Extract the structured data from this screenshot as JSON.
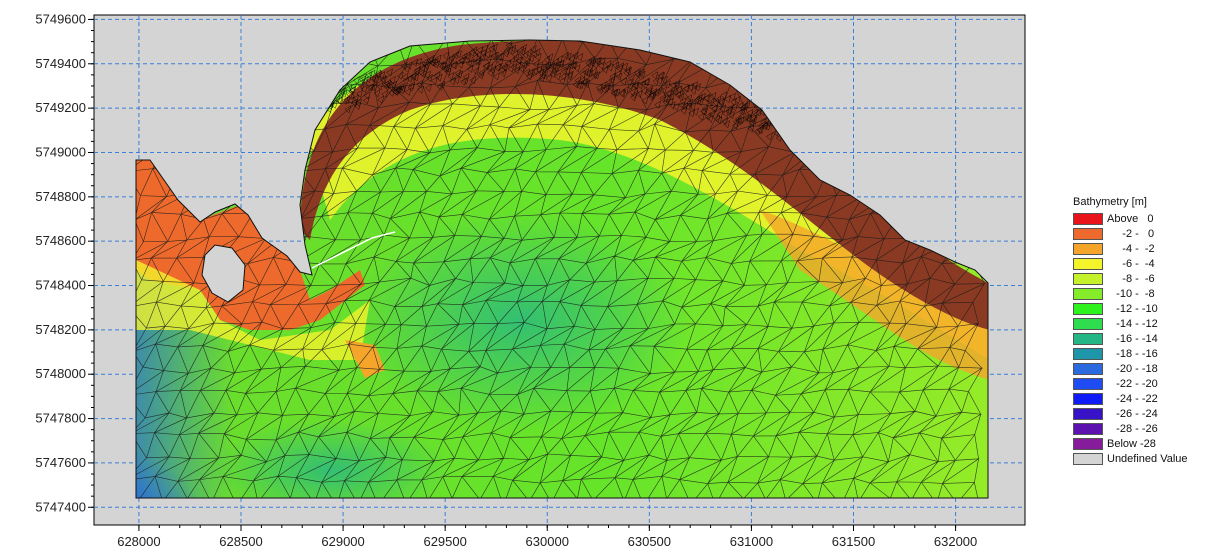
{
  "map": {
    "x_ticks": [
      "628000",
      "628500",
      "629000",
      "629500",
      "630000",
      "630500",
      "631000",
      "631500",
      "632000"
    ],
    "y_ticks": [
      "5749600",
      "5749400",
      "5749200",
      "5749000",
      "5748800",
      "5748600",
      "5748400",
      "5748200",
      "5748000",
      "5747800",
      "5747600",
      "5747400"
    ],
    "x_range": [
      627780,
      632340
    ],
    "y_range": [
      5747320,
      5749620
    ],
    "background_color": "#d4d4d4",
    "grid": "dashed blue",
    "grid_color": "#3a7fd8",
    "mesh": "triangular, black lines"
  },
  "legend": {
    "title": "Bathymetry [m]",
    "items": [
      {
        "label": "Above   0",
        "color": "#e8141a"
      },
      {
        "label": "     -2 -   0",
        "color": "#ee6a2c"
      },
      {
        "label": "     -4 -  -2",
        "color": "#f5a52a"
      },
      {
        "label": "     -6 -  -4",
        "color": "#f4f42c"
      },
      {
        "label": "     -8 -  -6",
        "color": "#c4f02c"
      },
      {
        "label": "   -10 -  -8",
        "color": "#84ec28"
      },
      {
        "label": "   -12 - -10",
        "color": "#2ef21e"
      },
      {
        "label": "   -14 - -12",
        "color": "#2ede4e"
      },
      {
        "label": "   -16 - -14",
        "color": "#26b685"
      },
      {
        "label": "   -18 - -16",
        "color": "#1e96aa"
      },
      {
        "label": "   -20 - -18",
        "color": "#2a6ade"
      },
      {
        "label": "   -22 - -20",
        "color": "#1e4cf2"
      },
      {
        "label": "   -24 - -22",
        "color": "#0e1cf8"
      },
      {
        "label": "   -26 - -24",
        "color": "#3812c6"
      },
      {
        "label": "   -28 - -26",
        "color": "#5d12b0"
      },
      {
        "label": "Below -28",
        "color": "#861c9c"
      },
      {
        "label": "Undefined Value",
        "color": "#d4d4d4"
      }
    ]
  }
}
